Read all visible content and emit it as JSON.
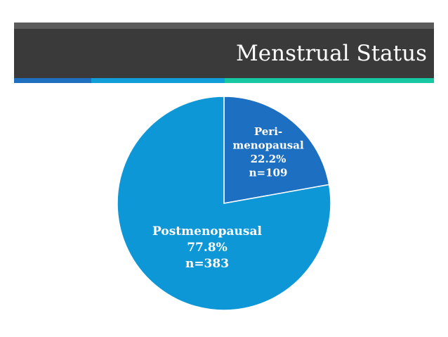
{
  "slide": {
    "title": "Menstrual Status"
  },
  "colors": {
    "title_bar": "#3a3a3a",
    "title_strip": "#5b5b5b",
    "accent": [
      "#1e6fbd",
      "#119ed8",
      "#16c7a1"
    ],
    "peri_slice": "#1d6fc2",
    "post_slice": "#0e97d6",
    "label_text": "#ffffff"
  },
  "chart_data": {
    "type": "pie",
    "title": "Menstrual Status",
    "slices": [
      {
        "name": "Peri-menopausal",
        "label_lines": [
          "Peri-",
          "menopausal",
          "22.2%",
          "n=109"
        ],
        "percent": 22.2,
        "n": 109,
        "color": "#1d6fc2"
      },
      {
        "name": "Postmenopausal",
        "label_lines": [
          "Postmenopausal",
          "77.8%",
          "n=383"
        ],
        "percent": 77.8,
        "n": 383,
        "color": "#0e97d6"
      }
    ],
    "start_angle": "12 o'clock",
    "direction": "clockwise",
    "legend": "none"
  }
}
